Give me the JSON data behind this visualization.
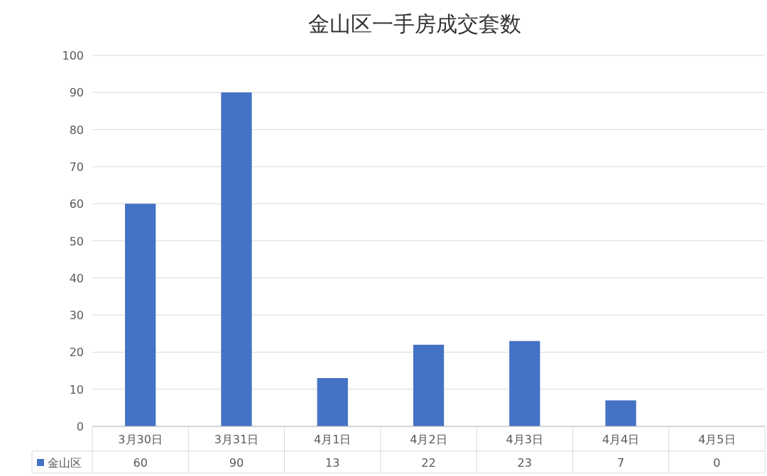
{
  "chart_data": {
    "type": "bar",
    "title": "金山区一手房成交套数",
    "categories": [
      "3月30日",
      "3月31日",
      "4月1日",
      "4月2日",
      "4月3日",
      "4月4日",
      "4月5日"
    ],
    "series": [
      {
        "name": "金山区",
        "color": "#4472c4",
        "values": [
          60,
          90,
          13,
          22,
          23,
          7,
          0
        ]
      }
    ],
    "ylim": [
      0,
      100
    ],
    "yticks": [
      0,
      10,
      20,
      30,
      40,
      50,
      60,
      70,
      80,
      90,
      100
    ],
    "grid": "y",
    "legend": "bottom",
    "data_labels": true
  }
}
